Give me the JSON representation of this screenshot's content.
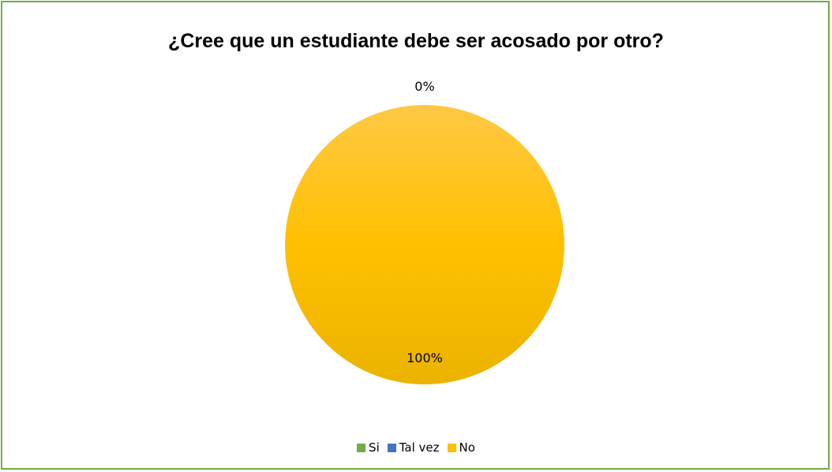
{
  "chart_data": {
    "type": "pie",
    "title": "¿Cree que un estudiante debe ser acosado por otro?",
    "categories": [
      "Si",
      "Tal vez",
      "No"
    ],
    "values": [
      0,
      0,
      100
    ],
    "data_labels": [
      "",
      "0%",
      "100%"
    ],
    "colors": [
      "#70ad47",
      "#4472c4",
      "#ffc000"
    ],
    "legend_position": "bottom"
  }
}
